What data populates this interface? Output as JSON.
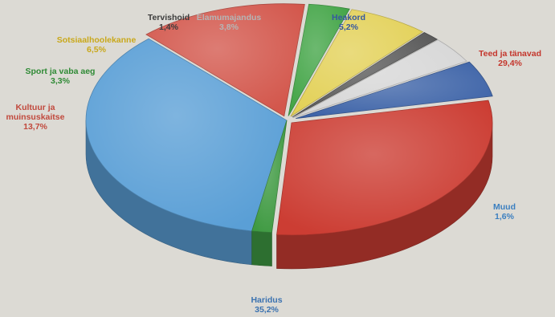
{
  "chart_data": {
    "type": "pie",
    "title": "",
    "slices": [
      {
        "label": "Haridus",
        "value": 35.2,
        "value_label": "35,2%",
        "color": "#5a9fd6",
        "label_color": "#3b72b0"
      },
      {
        "label": "Kultuur ja muinsuskaitse",
        "label_lines": [
          "Kultuur ja",
          "muinsuskaitse"
        ],
        "value": 13.7,
        "value_label": "13,7%",
        "color": "#d3574c",
        "label_color": "#c1493d"
      },
      {
        "label": "Sport ja vaba aeg",
        "value": 3.3,
        "value_label": "3,3%",
        "color": "#43a547",
        "label_color": "#2f8a35"
      },
      {
        "label": "Sotsiaalhoolekanne",
        "value": 6.5,
        "value_label": "6,5%",
        "color": "#e3d158",
        "label_color": "#c9a81a"
      },
      {
        "label": "Tervishoid",
        "value": 1.4,
        "value_label": "1,4%",
        "color": "#5a5a5a",
        "label_color": "#3d3d3d"
      },
      {
        "label": "Elamumajandus",
        "value": 3.8,
        "value_label": "3,8%",
        "color": "#d7d7d7",
        "label_color": "#b5b5b5"
      },
      {
        "label": "Heakord",
        "value": 5.2,
        "value_label": "5,2%",
        "color": "#3e64a8",
        "label_color": "#3558a0"
      },
      {
        "label": "Teed ja tänavad",
        "value": 29.4,
        "value_label": "29,4%",
        "color": "#cc3d33",
        "label_color": "#c4362c"
      },
      {
        "label": "Muud",
        "value": 1.6,
        "value_label": "1,6%",
        "color": "#3f9a42",
        "label_color": "#3b7fc0"
      }
    ],
    "legend": "none",
    "style": "3d-exploded-slices"
  }
}
